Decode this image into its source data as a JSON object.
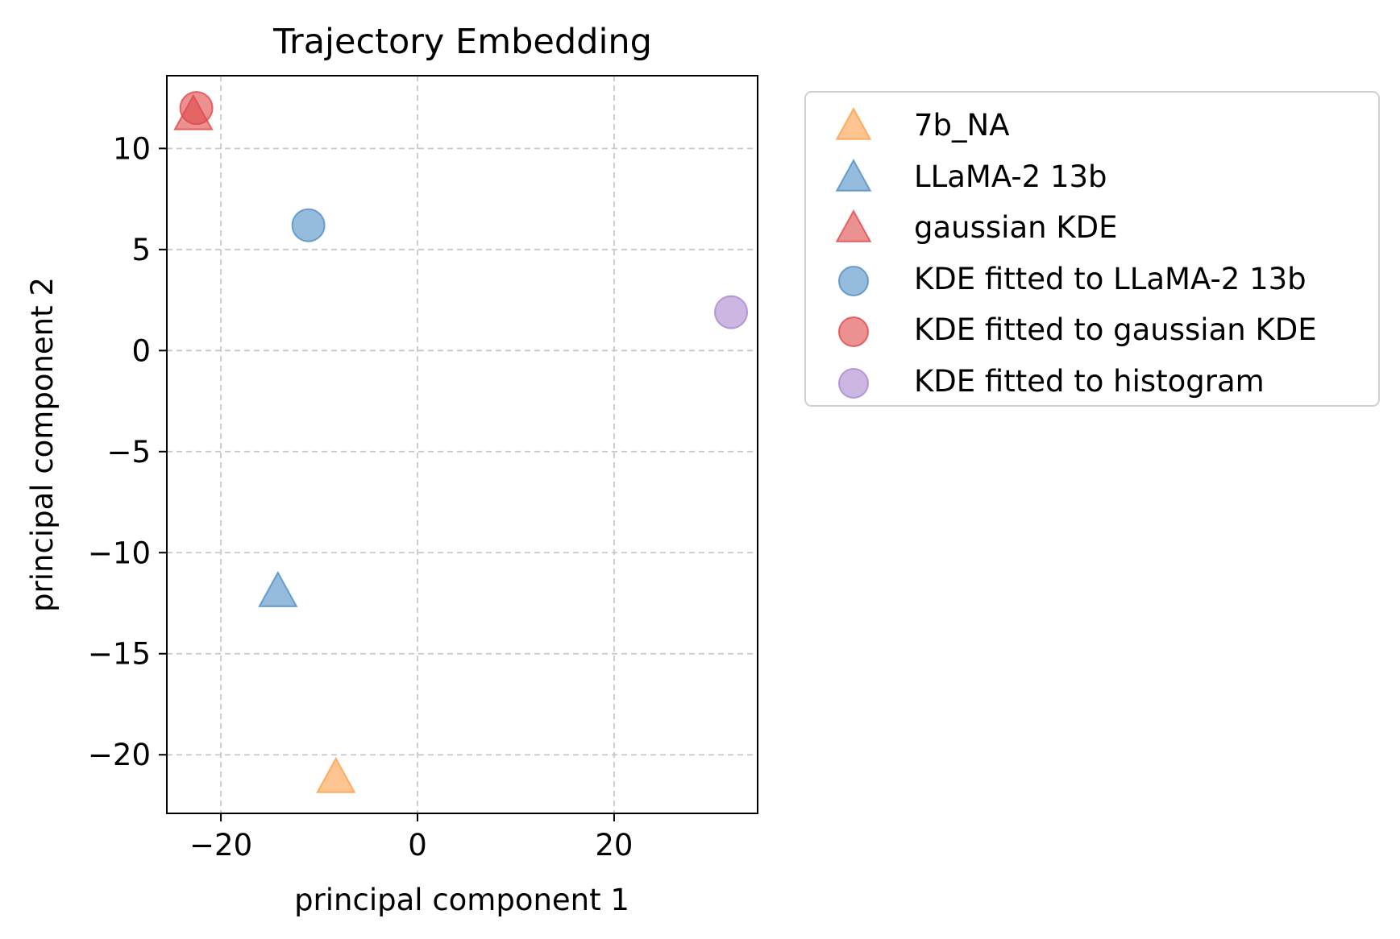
{
  "chart_data": {
    "type": "scatter",
    "title": "Trajectory Embedding",
    "xlabel": "principal component 1",
    "ylabel": "principal component 2",
    "xlim": [
      -25.5,
      34.6
    ],
    "ylim": [
      -22.9,
      13.6
    ],
    "xticks": [
      -20,
      0,
      20
    ],
    "xtick_labels": [
      "−20",
      "0",
      "20"
    ],
    "yticks": [
      10,
      5,
      0,
      -5,
      -10,
      -15,
      -20
    ],
    "ytick_labels": [
      "10",
      "5",
      "0",
      "−5",
      "−10",
      "−15",
      "−20"
    ],
    "grid": true,
    "legend_position": "outside-right-top",
    "series": [
      {
        "name": "7b_NA",
        "marker": "triangle",
        "color": "#ff9f46",
        "points": [
          [
            -8.3,
            -21.2
          ]
        ]
      },
      {
        "name": "LLaMA-2 13b",
        "marker": "triangle",
        "color": "#4f8ec6",
        "points": [
          [
            -14.2,
            -12.0
          ]
        ]
      },
      {
        "name": "gaussian KDE",
        "marker": "triangle",
        "color": "#e0474a",
        "points": [
          [
            -22.8,
            11.6
          ]
        ]
      },
      {
        "name": "KDE fitted to LLaMA-2 13b",
        "marker": "circle",
        "color": "#4f8ec6",
        "points": [
          [
            -11.1,
            6.2
          ]
        ]
      },
      {
        "name": "KDE fitted to gaussian KDE",
        "marker": "circle",
        "color": "#e0474a",
        "points": [
          [
            -22.5,
            12.0
          ]
        ]
      },
      {
        "name": "KDE fitted to histogram",
        "marker": "circle",
        "color": "#a987cf",
        "points": [
          [
            31.9,
            1.9
          ]
        ]
      }
    ]
  }
}
